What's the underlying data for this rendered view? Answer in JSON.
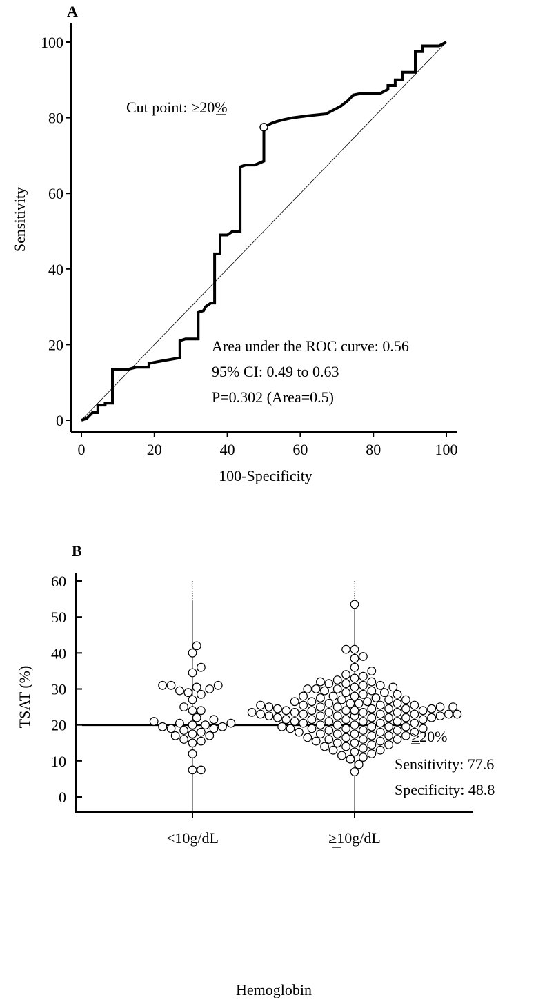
{
  "chart_data": [
    {
      "panel_label": "A",
      "type": "line",
      "title": "",
      "xlabel": "100-Specificity",
      "ylabel": "Sensitivity",
      "xlim": [
        0,
        100
      ],
      "ylim": [
        0,
        100
      ],
      "xticks": [
        0,
        20,
        40,
        60,
        80,
        100
      ],
      "yticks": [
        0,
        20,
        40,
        60,
        80,
        100
      ],
      "grid": false,
      "series": [
        {
          "points": [
            [
              0,
              0
            ],
            [
              1.5,
              0.5
            ],
            [
              2.5,
              1.5
            ],
            [
              3,
              2
            ],
            [
              4.5,
              2
            ],
            [
              4.5,
              4
            ],
            [
              6.5,
              4
            ],
            [
              6.5,
              4.5
            ],
            [
              8.5,
              4.5
            ],
            [
              8.5,
              13.5
            ],
            [
              13,
              13.5
            ],
            [
              15,
              14
            ],
            [
              18.5,
              14
            ],
            [
              18.5,
              15
            ],
            [
              21,
              15.5
            ],
            [
              24,
              16
            ],
            [
              27,
              16.5
            ],
            [
              27,
              21
            ],
            [
              28.5,
              21.5
            ],
            [
              32,
              21.5
            ],
            [
              32,
              28.5
            ],
            [
              33.5,
              29
            ],
            [
              34,
              30
            ],
            [
              35.5,
              31
            ],
            [
              36.5,
              31
            ],
            [
              36.5,
              44
            ],
            [
              38,
              44
            ],
            [
              38,
              49
            ],
            [
              40,
              49
            ],
            [
              41.5,
              50
            ],
            [
              43.5,
              50
            ],
            [
              43.5,
              67
            ],
            [
              45,
              67.5
            ],
            [
              47.5,
              67.5
            ],
            [
              50,
              68.5
            ],
            [
              50,
              77.5
            ],
            [
              52,
              78.5
            ],
            [
              53.5,
              79
            ],
            [
              55.5,
              79.5
            ],
            [
              58,
              80
            ],
            [
              62,
              80.5
            ],
            [
              67,
              81
            ],
            [
              71,
              83
            ],
            [
              73,
              84.5
            ],
            [
              74.5,
              86
            ],
            [
              77,
              86.5
            ],
            [
              82,
              86.5
            ],
            [
              84,
              87.5
            ],
            [
              84,
              88.5
            ],
            [
              86,
              88.5
            ],
            [
              86,
              90
            ],
            [
              88,
              90
            ],
            [
              88,
              92
            ],
            [
              91.5,
              92
            ],
            [
              91.5,
              97.5
            ],
            [
              93.5,
              97.5
            ],
            [
              93.5,
              99
            ],
            [
              98,
              99
            ],
            [
              100,
              100
            ]
          ]
        },
        {
          "reference_diagonal": true,
          "points": [
            [
              0,
              0
            ],
            [
              100,
              100
            ]
          ]
        }
      ],
      "cut_point": {
        "x": 50,
        "y": 77.5,
        "label": "Cut point: ≥20%"
      },
      "annotations": [
        "Area under the ROC curve: 0.56",
        "95% CI: 0.49 to 0.63",
        "P=0.302 (Area=0.5)"
      ]
    },
    {
      "panel_label": "B",
      "type": "scatter",
      "title": "",
      "xlabel": "Hemoglobin",
      "ylabel": "TSAT (%)",
      "ylim": [
        0,
        60
      ],
      "yticks": [
        0,
        10,
        20,
        30,
        40,
        50,
        60
      ],
      "categories": [
        "<10g/dL",
        "≥10g/dL"
      ],
      "grid": false,
      "threshold": {
        "value": 20,
        "label": "≥20%"
      },
      "annotations": [
        "Sensitivity: 77.6",
        "Specificity: 48.8"
      ],
      "series": [
        {
          "category": "<10g/dL",
          "values": [
            42,
            40,
            36,
            34.5,
            31,
            31,
            31,
            30.5,
            30,
            29.5,
            29,
            28.5,
            27,
            25,
            24,
            24,
            22,
            21.5,
            21,
            20.5,
            20.5,
            20,
            20,
            19.5,
            19.5,
            19,
            19,
            18.5,
            18,
            17.5,
            17,
            17,
            16,
            15.5,
            15,
            12,
            7.5,
            7.5
          ]
        },
        {
          "category": "≥10g/dL",
          "values": [
            53.5,
            41,
            41,
            39,
            38.5,
            36,
            35,
            34,
            33.5,
            33,
            32.5,
            32,
            32,
            31.5,
            31.5,
            31,
            31,
            30.5,
            30.5,
            30,
            30,
            30,
            29.5,
            29.5,
            29,
            29,
            28.5,
            28.5,
            28,
            28,
            28,
            27.5,
            27.5,
            27,
            27,
            27,
            26.5,
            26.5,
            26.5,
            26,
            26,
            26,
            26,
            25.5,
            25.5,
            25.5,
            25.5,
            25,
            25,
            25,
            25,
            25,
            24.5,
            24.5,
            24.5,
            24.5,
            24.5,
            24,
            24,
            24,
            24,
            24,
            24,
            23.5,
            23.5,
            23.5,
            23.5,
            23.5,
            23,
            23,
            23,
            23,
            23,
            23,
            22.5,
            22.5,
            22.5,
            22.5,
            22.5,
            22,
            22,
            22,
            22,
            22,
            21.5,
            21.5,
            21.5,
            21.5,
            21,
            21,
            21,
            21,
            20.5,
            20.5,
            20.5,
            20,
            20,
            20,
            19.5,
            19.5,
            19.5,
            19.5,
            19,
            19,
            19,
            19,
            18.5,
            18.5,
            18.5,
            18,
            18,
            18,
            17.5,
            17.5,
            17.5,
            17,
            17,
            17,
            16.5,
            16.5,
            16,
            16,
            16,
            15.5,
            15.5,
            15,
            15,
            14.5,
            14.5,
            14,
            14,
            13.5,
            13,
            13,
            12.5,
            12,
            11.5,
            11,
            10.5,
            9,
            7
          ]
        }
      ]
    }
  ]
}
